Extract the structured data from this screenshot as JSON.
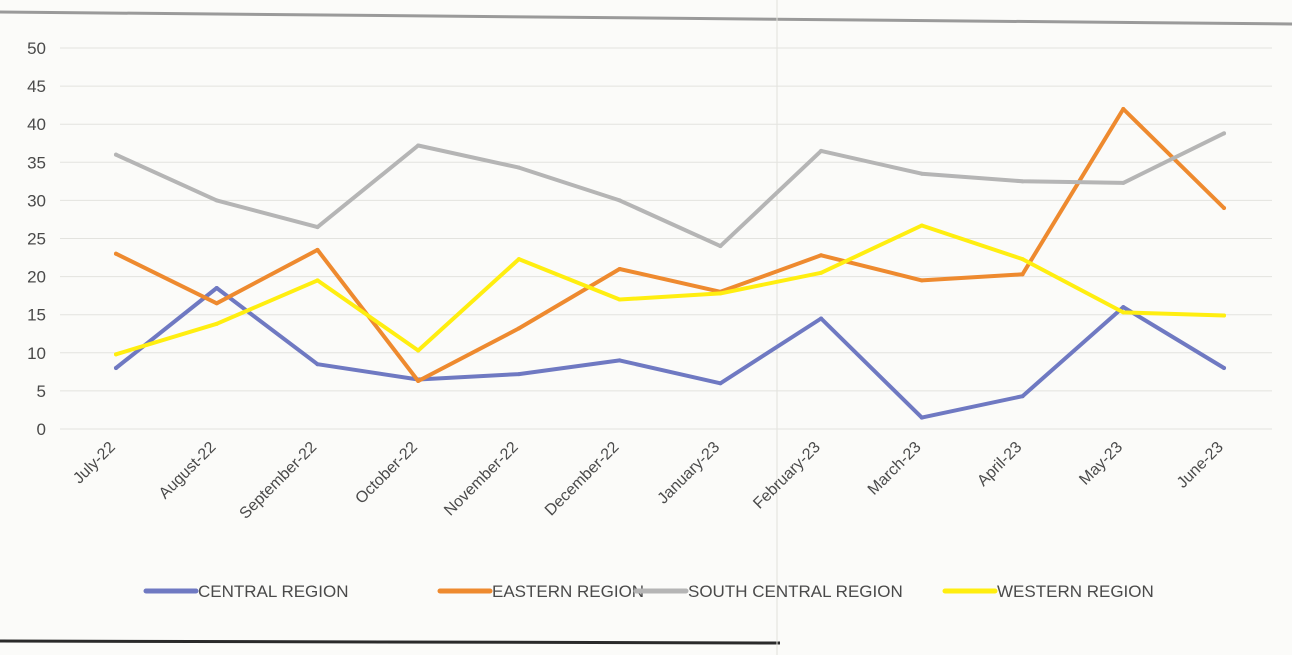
{
  "chart_data": {
    "type": "line",
    "title": "",
    "xlabel": "",
    "ylabel": "",
    "ylim": [
      0,
      50
    ],
    "yticks": [
      0,
      5,
      10,
      15,
      20,
      25,
      30,
      35,
      40,
      45,
      50
    ],
    "grid": true,
    "legend_position": "bottom",
    "categories": [
      "July-22",
      "August-22",
      "September-22",
      "October-22",
      "November-22",
      "December-22",
      "January-23",
      "February-23",
      "March-23",
      "April-23",
      "May-23",
      "June-23"
    ],
    "series": [
      {
        "name": "CENTRAL REGION",
        "color": "#6f79c2",
        "values": [
          8,
          18.5,
          8.5,
          6.5,
          7.2,
          9,
          6,
          14.5,
          1.5,
          4.3,
          16,
          8
        ]
      },
      {
        "name": "EASTERN REGION",
        "color": "#ee8a2f",
        "values": [
          23,
          16.5,
          23.5,
          6.3,
          13.2,
          21,
          18,
          22.8,
          19.5,
          20.3,
          42,
          29
        ]
      },
      {
        "name": "SOUTH CENTRAL REGION",
        "color": "#b5b5b5",
        "values": [
          36,
          30,
          26.5,
          37.2,
          34.3,
          30,
          24,
          36.5,
          33.5,
          32.5,
          32.3,
          38.8
        ]
      },
      {
        "name": "WESTERN REGION",
        "color": "#ffee10",
        "values": [
          9.8,
          13.8,
          19.5,
          10.3,
          22.3,
          17,
          17.8,
          20.5,
          26.7,
          22.3,
          15.3,
          14.9
        ]
      }
    ]
  }
}
